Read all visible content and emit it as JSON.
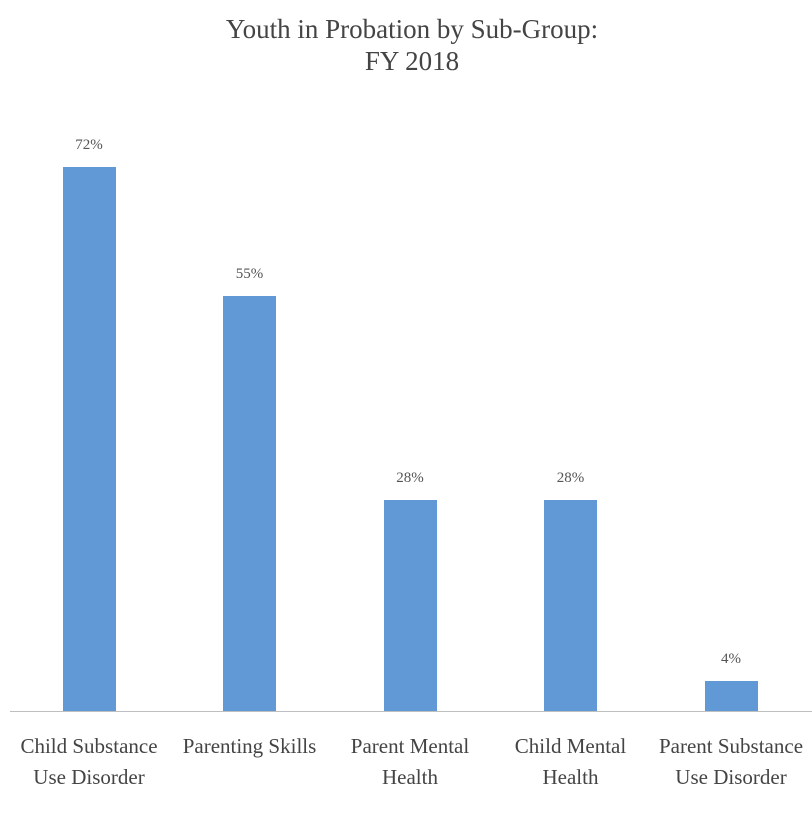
{
  "chart_data": {
    "type": "bar",
    "title": [
      "Youth in Probation by Sub-Group:",
      "FY 2018"
    ],
    "categories": [
      "Child Substance Use Disorder",
      "Parenting Skills",
      "Parent Mental Health",
      "Child Mental Health",
      "Parent Substance Use Disorder"
    ],
    "values": [
      72,
      55,
      28,
      28,
      4
    ],
    "value_labels": [
      "72%",
      "55%",
      "28%",
      "28%",
      "4%"
    ],
    "color": "#6199d6"
  }
}
